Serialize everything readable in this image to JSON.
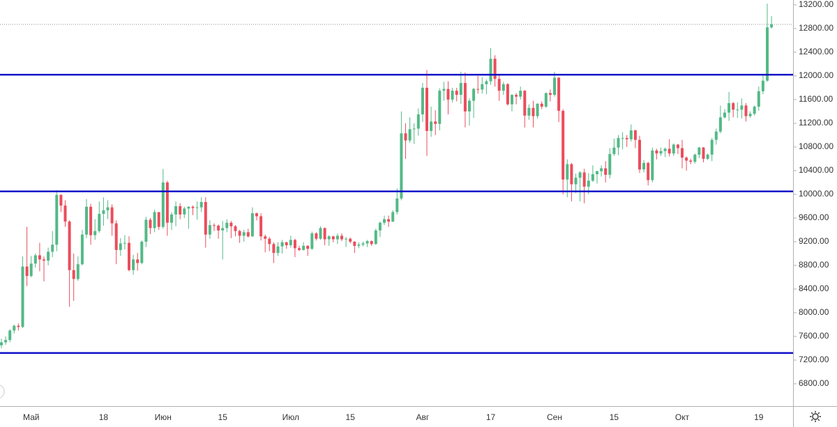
{
  "chart_data": {
    "type": "candlestick",
    "categories": [
      null,
      null,
      null,
      null,
      null,
      null,
      null,
      "Май",
      null,
      null,
      null,
      null,
      null,
      null,
      null,
      null,
      null,
      null,
      null,
      null,
      null,
      null,
      null,
      null,
      "18",
      null,
      null,
      null,
      null,
      null,
      null,
      null,
      null,
      null,
      null,
      null,
      null,
      null,
      "Июн",
      null,
      null,
      null,
      null,
      null,
      null,
      null,
      null,
      null,
      null,
      null,
      null,
      null,
      "15",
      null,
      null,
      null,
      null,
      null,
      null,
      null,
      null,
      null,
      null,
      null,
      null,
      null,
      null,
      null,
      "Июл",
      null,
      null,
      null,
      null,
      null,
      null,
      null,
      null,
      null,
      null,
      null,
      null,
      null,
      "15",
      null,
      null,
      null,
      null,
      null,
      null,
      null,
      null,
      null,
      null,
      null,
      null,
      null,
      null,
      null,
      null,
      "Авг",
      null,
      null,
      null,
      null,
      null,
      null,
      null,
      null,
      null,
      null,
      null,
      null,
      null,
      null,
      null,
      "17",
      null,
      null,
      null,
      null,
      null,
      null,
      null,
      null,
      null,
      null,
      null,
      null,
      null,
      null,
      "Сен",
      null,
      null,
      null,
      null,
      null,
      null,
      null,
      null,
      null,
      null,
      null,
      null,
      null,
      "15",
      null,
      null,
      null,
      null,
      null,
      null,
      null,
      null,
      null,
      null,
      null,
      null,
      null,
      null,
      null,
      "Окт",
      null,
      null,
      null,
      null,
      null,
      null,
      null,
      null,
      null,
      null,
      null,
      null,
      null,
      null,
      null,
      null,
      null,
      "19",
      null,
      null,
      null
    ],
    "open": [
      7450,
      7500,
      7540,
      7700,
      7780,
      7760,
      8780,
      8620,
      8830,
      8970,
      8900,
      8880,
      9030,
      9150,
      9990,
      9810,
      9540,
      8720,
      8570,
      8820,
      9320,
      9790,
      9310,
      9380,
      9670,
      9730,
      9780,
      9510,
      9060,
      9170,
      9180,
      8720,
      8900,
      8840,
      9200,
      9570,
      9430,
      9700,
      9450,
      10200,
      9520,
      9660,
      9800,
      9660,
      9760,
      9790,
      9770,
      9780,
      9870,
      9320,
      9480,
      9470,
      9390,
      9430,
      9520,
      9460,
      9380,
      9300,
      9360,
      9290,
      9680,
      9630,
      9290,
      9250,
      9160,
      9010,
      9120,
      9190,
      9140,
      9230,
      9090,
      9060,
      9130,
      9080,
      9340,
      9250,
      9430,
      9240,
      9290,
      9240,
      9300,
      9240,
      9250,
      9200,
      9130,
      9150,
      9170,
      9210,
      9160,
      9390,
      9520,
      9580,
      9540,
      9700,
      9930,
      11030,
      10910,
      11100,
      11110,
      11350,
      11800,
      11070,
      11230,
      11190,
      11750,
      11780,
      11600,
      11750,
      11680,
      11880,
      11400,
      11580,
      11780,
      11770,
      11860,
      11910,
      12290,
      11950,
      11750,
      11860,
      11520,
      11680,
      11650,
      11750,
      11330,
      11460,
      11320,
      11530,
      11480,
      11710,
      11680,
      11970,
      11410,
      10250,
      10510,
      10170,
      10280,
      10370,
      10130,
      10230,
      10340,
      10390,
      10440,
      10330,
      10680,
      10790,
      10950,
      10950,
      10930,
      11080,
      10920,
      10420,
      10530,
      10240,
      10740,
      10690,
      10730,
      10770,
      10690,
      10840,
      10780,
      10620,
      10570,
      10550,
      10670,
      10790,
      10600,
      10670,
      10920,
      11060,
      11300,
      11380,
      11540,
      11430,
      11430,
      11500,
      11320,
      11360,
      11480,
      11740,
      11920,
      12820
    ],
    "high": [
      7560,
      7600,
      7720,
      7800,
      7820,
      8950,
      9450,
      8960,
      9000,
      9180,
      8950,
      9100,
      9380,
      10070,
      10000,
      9900,
      9560,
      9000,
      8950,
      9400,
      9920,
      9840,
      9580,
      9880,
      9950,
      9900,
      9830,
      9560,
      9260,
      9310,
      9290,
      8980,
      9010,
      9220,
      9620,
      9600,
      9740,
      9700,
      10430,
      10230,
      9700,
      9880,
      9850,
      9790,
      9800,
      9810,
      9880,
      9950,
      9950,
      9560,
      9510,
      9490,
      9550,
      9580,
      9550,
      9480,
      9400,
      9400,
      9420,
      9780,
      9690,
      9680,
      9320,
      9280,
      9190,
      9190,
      9230,
      9200,
      9300,
      9250,
      9130,
      9190,
      9140,
      9370,
      9360,
      9460,
      9440,
      9310,
      9300,
      9340,
      9340,
      9280,
      9270,
      9210,
      9190,
      9200,
      9230,
      9220,
      9420,
      9540,
      9640,
      9640,
      9730,
      10100,
      11400,
      11200,
      11300,
      11200,
      11450,
      11880,
      12100,
      11480,
      11420,
      11790,
      11900,
      11910,
      11800,
      11800,
      12070,
      12060,
      11620,
      11800,
      12000,
      11980,
      11940,
      12470,
      12350,
      12030,
      11900,
      11880,
      11690,
      11710,
      11820,
      11760,
      11520,
      11580,
      11540,
      11570,
      11720,
      11770,
      12070,
      11980,
      11440,
      10590,
      10530,
      10350,
      10390,
      10430,
      10360,
      10490,
      10400,
      10490,
      10560,
      10780,
      10940,
      11000,
      11050,
      11000,
      11180,
      11090,
      10990,
      10580,
      10550,
      10790,
      10770,
      10790,
      10790,
      10930,
      10860,
      10850,
      10920,
      10640,
      10600,
      10690,
      10800,
      10800,
      10690,
      10950,
      11110,
      11500,
      11440,
      11730,
      11560,
      11550,
      11620,
      11540,
      11400,
      11500,
      11820,
      12030,
      13220,
      13010
    ],
    "low": [
      7400,
      7460,
      7500,
      7650,
      7700,
      7740,
      8450,
      8600,
      8760,
      8700,
      8530,
      8800,
      8940,
      9040,
      9700,
      9450,
      8100,
      8200,
      8540,
      8800,
      9260,
      9150,
      9230,
      9350,
      9470,
      9580,
      9300,
      8820,
      8960,
      9070,
      8700,
      8640,
      8710,
      8820,
      9110,
      9330,
      9360,
      9400,
      9420,
      9300,
      9400,
      9460,
      9580,
      9600,
      9420,
      9650,
      9570,
      9700,
      9100,
      9250,
      9380,
      9250,
      8900,
      9360,
      9260,
      9290,
      9180,
      9200,
      9270,
      9280,
      9560,
      9220,
      9020,
      9040,
      8840,
      8960,
      9000,
      9080,
      9100,
      8940,
      9040,
      9050,
      8960,
      9060,
      9220,
      9230,
      9140,
      9130,
      9190,
      9160,
      9210,
      9110,
      9170,
      9010,
      9090,
      9120,
      9110,
      9130,
      9150,
      9280,
      9480,
      9450,
      9530,
      9660,
      9900,
      10600,
      10870,
      10850,
      10990,
      11220,
      10650,
      10970,
      11000,
      11080,
      11580,
      11350,
      11550,
      11570,
      11530,
      11130,
      11160,
      11290,
      11700,
      11700,
      11690,
      11850,
      11820,
      11580,
      11680,
      11500,
      11400,
      11520,
      11600,
      11130,
      11260,
      11130,
      11280,
      11440,
      11460,
      11570,
      11650,
      11220,
      10000,
      9950,
      9880,
      10020,
      9880,
      9850,
      10000,
      10210,
      10180,
      10300,
      10200,
      10270,
      10650,
      10660,
      10760,
      10800,
      10890,
      10780,
      10360,
      10370,
      10150,
      10200,
      10590,
      10650,
      10630,
      10640,
      10650,
      10680,
      10440,
      10400,
      10510,
      10520,
      10610,
      10540,
      10580,
      10560,
      10840,
      11030,
      11280,
      11240,
      11300,
      11290,
      11280,
      11230,
      11290,
      11330,
      11410,
      11690,
      11900,
      12800
    ],
    "close": [
      7500,
      7540,
      7700,
      7780,
      7760,
      8780,
      8620,
      8830,
      8970,
      8900,
      8880,
      9030,
      9150,
      9990,
      9810,
      9540,
      8720,
      8570,
      8820,
      9320,
      9790,
      9310,
      9380,
      9670,
      9730,
      9780,
      9510,
      9060,
      9170,
      9180,
      8720,
      8900,
      8840,
      9200,
      9570,
      9430,
      9700,
      9450,
      10200,
      9520,
      9660,
      9800,
      9660,
      9760,
      9790,
      9770,
      9780,
      9870,
      9320,
      9480,
      9470,
      9390,
      9430,
      9520,
      9460,
      9380,
      9300,
      9360,
      9290,
      9680,
      9630,
      9290,
      9250,
      9160,
      9010,
      9120,
      9190,
      9140,
      9230,
      9090,
      9060,
      9130,
      9080,
      9340,
      9250,
      9430,
      9240,
      9290,
      9240,
      9300,
      9240,
      9250,
      9200,
      9130,
      9150,
      9170,
      9210,
      9160,
      9390,
      9520,
      9580,
      9540,
      9700,
      9930,
      11030,
      10910,
      11100,
      11110,
      11350,
      11800,
      11070,
      11230,
      11190,
      11750,
      11780,
      11600,
      11750,
      11680,
      11880,
      11400,
      11580,
      11780,
      11770,
      11860,
      11910,
      12290,
      11950,
      11750,
      11860,
      11520,
      11680,
      11650,
      11750,
      11330,
      11460,
      11320,
      11530,
      11480,
      11710,
      11680,
      11970,
      11410,
      10250,
      10510,
      10170,
      10280,
      10370,
      10130,
      10230,
      10340,
      10390,
      10440,
      10330,
      10680,
      10790,
      10950,
      10950,
      10930,
      11080,
      10920,
      10420,
      10530,
      10240,
      10740,
      10690,
      10730,
      10770,
      10690,
      10840,
      10780,
      10620,
      10570,
      10550,
      10670,
      10790,
      10600,
      10670,
      10920,
      11060,
      11300,
      11380,
      11540,
      11430,
      11430,
      11500,
      11320,
      11360,
      11480,
      11740,
      11920,
      12820,
      12870
    ],
    "up_color": "#53b987",
    "down_color": "#eb4d5c",
    "ylim": [
      6423,
      13282
    ],
    "yticks": [
      {
        "value": 6800,
        "label": "6800.00"
      },
      {
        "value": 7200,
        "label": "7200.00"
      },
      {
        "value": 7600,
        "label": "7600.00"
      },
      {
        "value": 8000,
        "label": "8000.00"
      },
      {
        "value": 8400,
        "label": "8400.00"
      },
      {
        "value": 8800,
        "label": "8800.00"
      },
      {
        "value": 9200,
        "label": "9200.00"
      },
      {
        "value": 9600,
        "label": "9600.00"
      },
      {
        "value": 10000,
        "label": "10000.00"
      },
      {
        "value": 10400,
        "label": "10400.00"
      },
      {
        "value": 10800,
        "label": "10800.00"
      },
      {
        "value": 11200,
        "label": "11200.00"
      },
      {
        "value": 11600,
        "label": "11600.00"
      },
      {
        "value": 12000,
        "label": "12000.00"
      },
      {
        "value": 12400,
        "label": "12400.00"
      },
      {
        "value": 12800,
        "label": "12800.00"
      },
      {
        "value": 13200,
        "label": "13200.00"
      }
    ],
    "grid": false,
    "hlines": [
      12020,
      10050,
      7320
    ],
    "hline_color": "#1010c8",
    "price_line": 12870
  }
}
